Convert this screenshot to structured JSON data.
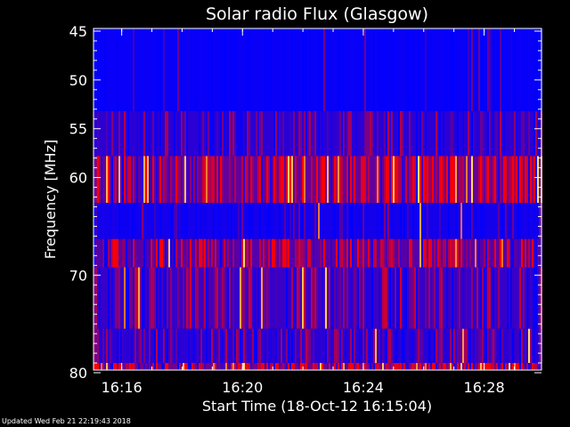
{
  "chart_data": {
    "type": "heatmap",
    "title": "Solar radio Flux (Glasgow)",
    "xlabel": "Start Time (18-Oct-12 16:15:04)",
    "ylabel": "Frequency [MHz]",
    "x_ticks": [
      "16:16",
      "16:20",
      "16:24",
      "16:28"
    ],
    "y_ticks": [
      "45",
      "50",
      "55",
      "60",
      "70",
      "80"
    ],
    "y_tick_values": [
      45,
      50,
      55,
      60,
      70,
      80
    ],
    "ylim": [
      80,
      45
    ],
    "x_range": [
      "16:15:04",
      "16:29:54"
    ],
    "colormap": [
      "#0000ff",
      "#ff0000",
      "#ffff66"
    ],
    "bands": [
      {
        "from": 44.5,
        "to": 53.2,
        "level": 0.06,
        "red_frac": 0.1,
        "hot_frac": 0.0
      },
      {
        "from": 53.2,
        "to": 57.8,
        "level": 0.3,
        "red_frac": 0.35,
        "hot_frac": 0.0
      },
      {
        "from": 57.8,
        "to": 62.6,
        "level": 0.72,
        "red_frac": 0.45,
        "hot_frac": 0.04
      },
      {
        "from": 62.6,
        "to": 66.3,
        "level": 0.14,
        "red_frac": 0.12,
        "hot_frac": 0.01
      },
      {
        "from": 66.3,
        "to": 69.2,
        "level": 0.62,
        "red_frac": 0.45,
        "hot_frac": 0.03
      },
      {
        "from": 69.2,
        "to": 75.5,
        "level": 0.4,
        "red_frac": 0.4,
        "hot_frac": 0.02
      },
      {
        "from": 75.5,
        "to": 79.0,
        "level": 0.3,
        "red_frac": 0.4,
        "hot_frac": 0.02
      },
      {
        "from": 79.0,
        "to": 80.3,
        "level": 0.8,
        "red_frac": 0.5,
        "hot_frac": 0.04
      }
    ]
  },
  "footer_text": "Updated Wed Feb 21 22:19:43 2018"
}
